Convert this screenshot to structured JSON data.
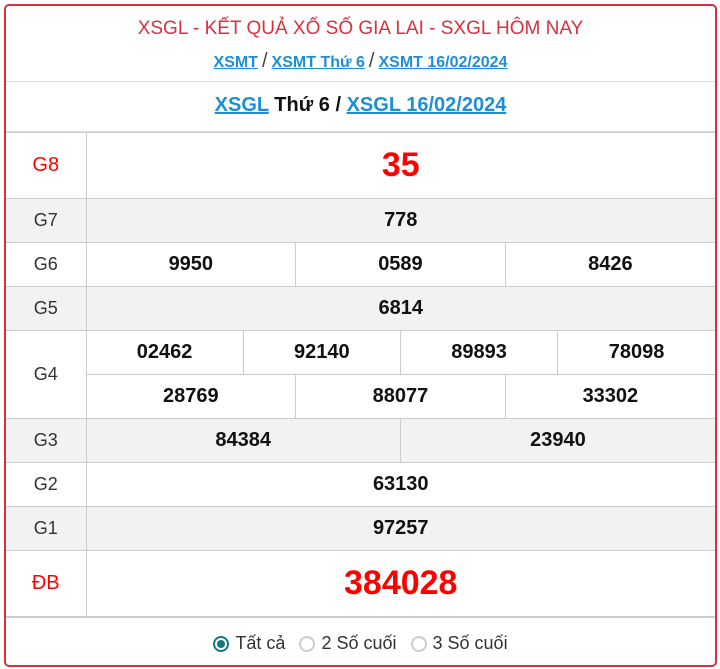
{
  "header": {
    "title": "XSGL - KẾT QUẢ XỔ SỐ GIA LAI - SXGL HÔM NAY",
    "breadcrumbs": [
      "XSMT",
      "XSMT Thứ 6",
      "XSMT 16/02/2024"
    ],
    "separator": "/"
  },
  "subtitle": {
    "link1": "XSGL",
    "text": "Thứ 6",
    "sep": "/",
    "link2": "XSGL 16/02/2024"
  },
  "results": {
    "g8": {
      "label": "G8",
      "values": [
        "35"
      ]
    },
    "g7": {
      "label": "G7",
      "values": [
        "778"
      ]
    },
    "g6": {
      "label": "G6",
      "values": [
        "9950",
        "0589",
        "8426"
      ]
    },
    "g5": {
      "label": "G5",
      "values": [
        "6814"
      ]
    },
    "g4": {
      "label": "G4",
      "values": [
        "02462",
        "92140",
        "89893",
        "78098",
        "28769",
        "88077",
        "33302"
      ]
    },
    "g3": {
      "label": "G3",
      "values": [
        "84384",
        "23940"
      ]
    },
    "g2": {
      "label": "G2",
      "values": [
        "63130"
      ]
    },
    "g1": {
      "label": "G1",
      "values": [
        "97257"
      ]
    },
    "db": {
      "label": "ĐB",
      "values": [
        "384028"
      ]
    }
  },
  "filter": {
    "options": [
      "Tất cả",
      "2 Số cuối",
      "3 Số cuối"
    ],
    "selected": "Tất cả"
  },
  "colors": {
    "accent": "#d9303e",
    "link": "#1d8fd6",
    "prize": "#ff0000",
    "radio": "#137a7a"
  }
}
